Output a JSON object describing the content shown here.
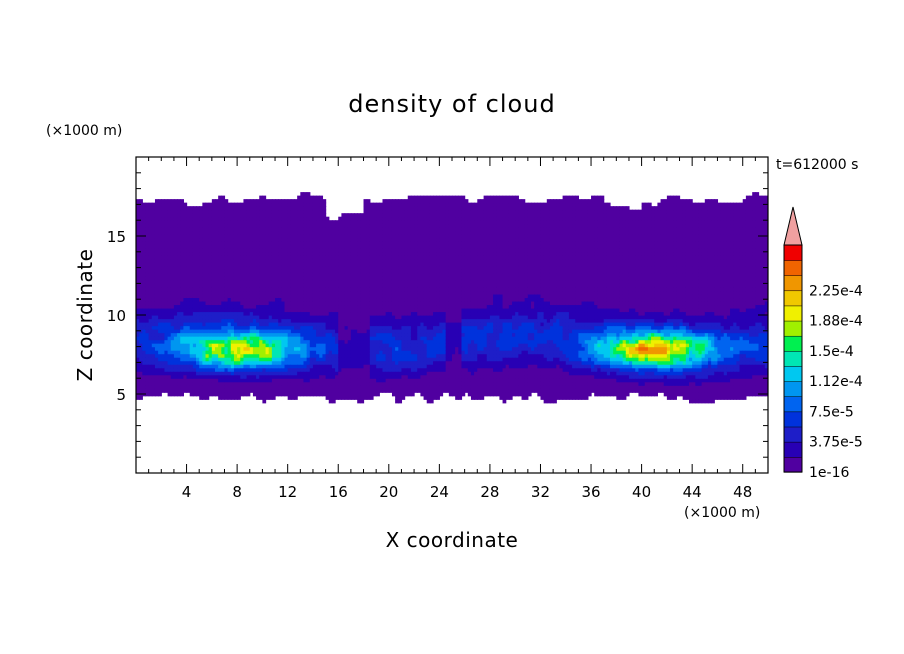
{
  "chart_data": {
    "type": "heatmap",
    "title": "density of cloud",
    "xlabel": "X coordinate",
    "ylabel": "Z coordinate",
    "x_unit": "(×1000 m)",
    "y_unit": "(×1000 m)",
    "time_label": "t=612000 s",
    "xlim": [
      0,
      50
    ],
    "ylim": [
      0,
      20
    ],
    "x_ticks": [
      4,
      8,
      12,
      16,
      20,
      24,
      28,
      32,
      36,
      40,
      44,
      48
    ],
    "y_ticks": [
      5,
      10,
      15
    ],
    "x_tick_labels": [
      "4",
      "8",
      "12",
      "16",
      "20",
      "24",
      "28",
      "32",
      "36",
      "40",
      "44",
      "48"
    ],
    "y_tick_labels": [
      "5",
      "10",
      "15"
    ],
    "colorbar": {
      "levels": [
        1e-16,
        1.875e-05,
        3.75e-05,
        5.625e-05,
        7.5e-05,
        9.375e-05,
        0.0001125,
        0.00013125,
        0.00015,
        0.00016875,
        0.0001875,
        0.00020625,
        0.000225,
        0.00024375
      ],
      "colors": [
        "#5000a0",
        "#2800b4",
        "#1e1ec8",
        "#0032dc",
        "#0064f0",
        "#0096f0",
        "#00c8f0",
        "#00e6b4",
        "#00f050",
        "#a0f000",
        "#f0f000",
        "#f0c800",
        "#f09600",
        "#f06400",
        "#f00000",
        "#f0a0a0"
      ],
      "labels": [
        "1e-16",
        "3.75e-5",
        "7.5e-5",
        "1.12e-4",
        "1.5e-4",
        "1.88e-4",
        "2.25e-4"
      ],
      "overflow_arrow": true
    },
    "features": {
      "cloud_base_km": 5.0,
      "cloud_top_km": 17.3,
      "dense_layer_z_km": [
        6,
        10
      ],
      "max_density_regions": [
        {
          "x_km": 8,
          "z_km": 7.7,
          "value": 0.00015
        },
        {
          "x_km": 41,
          "z_km": 7.8,
          "value": 0.00016
        }
      ]
    }
  }
}
